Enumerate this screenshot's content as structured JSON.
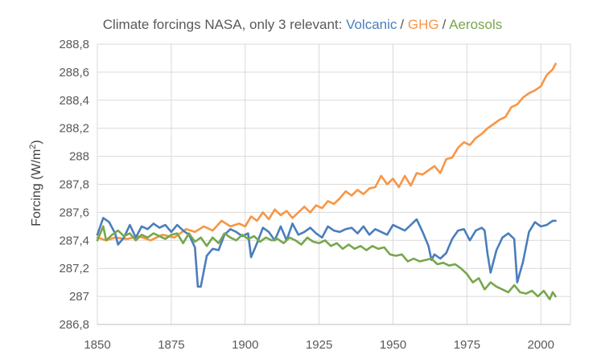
{
  "chart_data": {
    "type": "line",
    "title": {
      "prefix": "Climate forcings NASA, only 3 relevant:",
      "separator": "/",
      "parts": [
        {
          "text": "Volcanic",
          "color": "#4a7ebb"
        },
        {
          "text": "GHG",
          "color": "#f79646"
        },
        {
          "text": "Aerosols",
          "color": "#77a74b"
        }
      ]
    },
    "ylabel": {
      "main": "Forcing (W/m",
      "sup": "2",
      "close": ")"
    },
    "xlabel": "",
    "xlim": [
      1850,
      2010
    ],
    "ylim": [
      286.8,
      288.8
    ],
    "x_ticks": [
      1850,
      1875,
      1900,
      1925,
      1950,
      1975,
      2000
    ],
    "y_ticks": [
      {
        "value": 286.8,
        "label": "286,8"
      },
      {
        "value": 287.0,
        "label": "287"
      },
      {
        "value": 287.2,
        "label": "287,2"
      },
      {
        "value": 287.4,
        "label": "287,4"
      },
      {
        "value": 287.6,
        "label": "287,6"
      },
      {
        "value": 287.8,
        "label": "287,8"
      },
      {
        "value": 288.0,
        "label": "288"
      },
      {
        "value": 288.2,
        "label": "288,2"
      },
      {
        "value": 288.4,
        "label": "288,4"
      },
      {
        "value": 288.6,
        "label": "288,6"
      },
      {
        "value": 288.8,
        "label": "288,8"
      }
    ],
    "grid": true,
    "colors": {
      "grid": "#d9d9d9",
      "axis": "#bfbfbf",
      "text": "#595959"
    },
    "series": [
      {
        "name": "GHG",
        "color": "#f79646",
        "points": [
          [
            1850,
            287.42
          ],
          [
            1853,
            287.4
          ],
          [
            1856,
            287.42
          ],
          [
            1860,
            287.41
          ],
          [
            1864,
            287.43
          ],
          [
            1868,
            287.4
          ],
          [
            1872,
            287.44
          ],
          [
            1876,
            287.42
          ],
          [
            1880,
            287.48
          ],
          [
            1883,
            287.46
          ],
          [
            1886,
            287.5
          ],
          [
            1889,
            287.47
          ],
          [
            1892,
            287.54
          ],
          [
            1895,
            287.5
          ],
          [
            1898,
            287.52
          ],
          [
            1900,
            287.5
          ],
          [
            1902,
            287.57
          ],
          [
            1904,
            287.54
          ],
          [
            1906,
            287.6
          ],
          [
            1908,
            287.55
          ],
          [
            1910,
            287.62
          ],
          [
            1912,
            287.58
          ],
          [
            1914,
            287.61
          ],
          [
            1916,
            287.56
          ],
          [
            1918,
            287.6
          ],
          [
            1920,
            287.64
          ],
          [
            1922,
            287.6
          ],
          [
            1924,
            287.65
          ],
          [
            1926,
            287.63
          ],
          [
            1928,
            287.68
          ],
          [
            1930,
            287.66
          ],
          [
            1932,
            287.7
          ],
          [
            1934,
            287.75
          ],
          [
            1936,
            287.72
          ],
          [
            1938,
            287.76
          ],
          [
            1940,
            287.73
          ],
          [
            1942,
            287.77
          ],
          [
            1944,
            287.78
          ],
          [
            1946,
            287.86
          ],
          [
            1948,
            287.8
          ],
          [
            1950,
            287.84
          ],
          [
            1952,
            287.78
          ],
          [
            1954,
            287.86
          ],
          [
            1956,
            287.79
          ],
          [
            1958,
            287.88
          ],
          [
            1960,
            287.87
          ],
          [
            1962,
            287.9
          ],
          [
            1964,
            287.93
          ],
          [
            1966,
            287.88
          ],
          [
            1968,
            287.98
          ],
          [
            1970,
            287.99
          ],
          [
            1972,
            288.06
          ],
          [
            1974,
            288.1
          ],
          [
            1976,
            288.08
          ],
          [
            1978,
            288.13
          ],
          [
            1980,
            288.16
          ],
          [
            1982,
            288.2
          ],
          [
            1984,
            288.23
          ],
          [
            1986,
            288.26
          ],
          [
            1988,
            288.28
          ],
          [
            1990,
            288.35
          ],
          [
            1992,
            288.37
          ],
          [
            1994,
            288.42
          ],
          [
            1996,
            288.45
          ],
          [
            1998,
            288.47
          ],
          [
            2000,
            288.5
          ],
          [
            2002,
            288.58
          ],
          [
            2004,
            288.62
          ],
          [
            2005,
            288.66
          ]
        ]
      },
      {
        "name": "Volcanic",
        "color": "#4a7ebb",
        "points": [
          [
            1850,
            287.44
          ],
          [
            1852,
            287.56
          ],
          [
            1854,
            287.53
          ],
          [
            1856,
            287.45
          ],
          [
            1857,
            287.37
          ],
          [
            1859,
            287.42
          ],
          [
            1861,
            287.51
          ],
          [
            1863,
            287.42
          ],
          [
            1865,
            287.5
          ],
          [
            1867,
            287.48
          ],
          [
            1869,
            287.52
          ],
          [
            1871,
            287.49
          ],
          [
            1873,
            287.51
          ],
          [
            1875,
            287.46
          ],
          [
            1877,
            287.51
          ],
          [
            1879,
            287.47
          ],
          [
            1881,
            287.44
          ],
          [
            1883,
            287.35
          ],
          [
            1884,
            287.07
          ],
          [
            1885,
            287.07
          ],
          [
            1887,
            287.29
          ],
          [
            1889,
            287.34
          ],
          [
            1891,
            287.33
          ],
          [
            1893,
            287.44
          ],
          [
            1895,
            287.48
          ],
          [
            1897,
            287.46
          ],
          [
            1899,
            287.43
          ],
          [
            1901,
            287.45
          ],
          [
            1902,
            287.28
          ],
          [
            1904,
            287.38
          ],
          [
            1906,
            287.49
          ],
          [
            1908,
            287.46
          ],
          [
            1910,
            287.4
          ],
          [
            1912,
            287.5
          ],
          [
            1914,
            287.4
          ],
          [
            1916,
            287.52
          ],
          [
            1918,
            287.44
          ],
          [
            1920,
            287.46
          ],
          [
            1922,
            287.49
          ],
          [
            1924,
            287.45
          ],
          [
            1926,
            287.42
          ],
          [
            1928,
            287.5
          ],
          [
            1930,
            287.47
          ],
          [
            1932,
            287.46
          ],
          [
            1934,
            287.48
          ],
          [
            1936,
            287.49
          ],
          [
            1938,
            287.45
          ],
          [
            1940,
            287.5
          ],
          [
            1942,
            287.44
          ],
          [
            1944,
            287.48
          ],
          [
            1946,
            287.46
          ],
          [
            1948,
            287.44
          ],
          [
            1950,
            287.51
          ],
          [
            1952,
            287.49
          ],
          [
            1954,
            287.47
          ],
          [
            1956,
            287.51
          ],
          [
            1958,
            287.55
          ],
          [
            1960,
            287.46
          ],
          [
            1962,
            287.36
          ],
          [
            1963,
            287.26
          ],
          [
            1964,
            287.3
          ],
          [
            1966,
            287.27
          ],
          [
            1968,
            287.31
          ],
          [
            1970,
            287.41
          ],
          [
            1972,
            287.47
          ],
          [
            1974,
            287.48
          ],
          [
            1976,
            287.4
          ],
          [
            1978,
            287.47
          ],
          [
            1980,
            287.49
          ],
          [
            1981,
            287.47
          ],
          [
            1982,
            287.3
          ],
          [
            1983,
            287.17
          ],
          [
            1985,
            287.33
          ],
          [
            1987,
            287.42
          ],
          [
            1989,
            287.45
          ],
          [
            1991,
            287.41
          ],
          [
            1992,
            287.1
          ],
          [
            1994,
            287.25
          ],
          [
            1996,
            287.46
          ],
          [
            1998,
            287.53
          ],
          [
            2000,
            287.5
          ],
          [
            2002,
            287.51
          ],
          [
            2004,
            287.54
          ],
          [
            2005,
            287.54
          ]
        ]
      },
      {
        "name": "Aerosols",
        "color": "#77a74b",
        "points": [
          [
            1850,
            287.4
          ],
          [
            1852,
            287.5
          ],
          [
            1853,
            287.4
          ],
          [
            1855,
            287.44
          ],
          [
            1857,
            287.47
          ],
          [
            1859,
            287.43
          ],
          [
            1861,
            287.45
          ],
          [
            1863,
            287.4
          ],
          [
            1865,
            287.44
          ],
          [
            1867,
            287.42
          ],
          [
            1869,
            287.45
          ],
          [
            1871,
            287.43
          ],
          [
            1873,
            287.41
          ],
          [
            1875,
            287.44
          ],
          [
            1877,
            287.45
          ],
          [
            1879,
            287.38
          ],
          [
            1881,
            287.45
          ],
          [
            1883,
            287.39
          ],
          [
            1885,
            287.42
          ],
          [
            1887,
            287.36
          ],
          [
            1889,
            287.42
          ],
          [
            1891,
            287.38
          ],
          [
            1893,
            287.45
          ],
          [
            1895,
            287.42
          ],
          [
            1897,
            287.4
          ],
          [
            1899,
            287.44
          ],
          [
            1901,
            287.41
          ],
          [
            1903,
            287.43
          ],
          [
            1905,
            287.39
          ],
          [
            1907,
            287.42
          ],
          [
            1909,
            287.4
          ],
          [
            1911,
            287.41
          ],
          [
            1913,
            287.38
          ],
          [
            1915,
            287.42
          ],
          [
            1917,
            287.4
          ],
          [
            1919,
            287.37
          ],
          [
            1921,
            287.42
          ],
          [
            1923,
            287.39
          ],
          [
            1925,
            287.38
          ],
          [
            1927,
            287.4
          ],
          [
            1929,
            287.36
          ],
          [
            1931,
            287.38
          ],
          [
            1933,
            287.34
          ],
          [
            1935,
            287.37
          ],
          [
            1937,
            287.34
          ],
          [
            1939,
            287.36
          ],
          [
            1941,
            287.33
          ],
          [
            1943,
            287.36
          ],
          [
            1945,
            287.34
          ],
          [
            1947,
            287.35
          ],
          [
            1949,
            287.3
          ],
          [
            1951,
            287.29
          ],
          [
            1953,
            287.3
          ],
          [
            1955,
            287.25
          ],
          [
            1957,
            287.27
          ],
          [
            1959,
            287.25
          ],
          [
            1961,
            287.26
          ],
          [
            1963,
            287.27
          ],
          [
            1965,
            287.23
          ],
          [
            1967,
            287.24
          ],
          [
            1969,
            287.22
          ],
          [
            1971,
            287.23
          ],
          [
            1973,
            287.2
          ],
          [
            1975,
            287.16
          ],
          [
            1977,
            287.1
          ],
          [
            1979,
            287.13
          ],
          [
            1981,
            287.05
          ],
          [
            1983,
            287.1
          ],
          [
            1985,
            287.07
          ],
          [
            1987,
            287.05
          ],
          [
            1989,
            287.03
          ],
          [
            1991,
            287.08
          ],
          [
            1993,
            287.03
          ],
          [
            1995,
            287.02
          ],
          [
            1997,
            287.04
          ],
          [
            1999,
            287.0
          ],
          [
            2001,
            287.04
          ],
          [
            2003,
            286.98
          ],
          [
            2004,
            287.03
          ],
          [
            2005,
            287.0
          ]
        ]
      }
    ]
  }
}
